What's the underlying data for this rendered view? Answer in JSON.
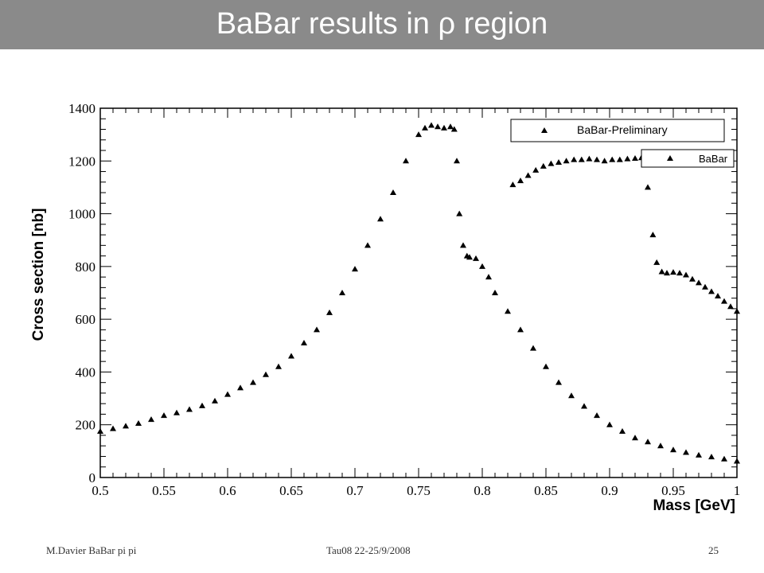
{
  "slide": {
    "title": "BaBar results in ρ region",
    "footer_author": "M.Davier   BaBar pi pi",
    "footer_event": "Tau08  22-25/9/2008",
    "footer_page": "25"
  },
  "colors": {
    "title_bar": "#8a8a8a",
    "points": "#000000"
  },
  "chart_data": {
    "type": "scatter",
    "xlabel": "Mass   [GeV]",
    "ylabel": "Cross section   [nb]",
    "xlim": [
      0.5,
      1.0
    ],
    "ylim": [
      0,
      1400
    ],
    "xticks": [
      "0.5",
      "0.55",
      "0.6",
      "0.65",
      "0.7",
      "0.75",
      "0.8",
      "0.85",
      "0.9",
      "0.95",
      "1"
    ],
    "xtick_values": [
      0.5,
      0.55,
      0.6,
      0.65,
      0.7,
      0.75,
      0.8,
      0.85,
      0.9,
      0.95,
      1.0
    ],
    "yticks": [
      "0",
      "200",
      "400",
      "600",
      "800",
      "1000",
      "1200",
      "1400"
    ],
    "ytick_values": [
      0,
      200,
      400,
      600,
      800,
      1000,
      1200,
      1400
    ],
    "grid": false,
    "legend_position": "top-right",
    "marker": "triangle",
    "series": [
      {
        "name": "BaBar-Preliminary",
        "points": [
          [
            0.5,
            175
          ],
          [
            0.51,
            185
          ],
          [
            0.52,
            195
          ],
          [
            0.53,
            205
          ],
          [
            0.54,
            220
          ],
          [
            0.55,
            235
          ],
          [
            0.56,
            245
          ],
          [
            0.57,
            258
          ],
          [
            0.58,
            272
          ],
          [
            0.59,
            290
          ],
          [
            0.6,
            315
          ],
          [
            0.61,
            340
          ],
          [
            0.62,
            360
          ],
          [
            0.63,
            390
          ],
          [
            0.64,
            420
          ],
          [
            0.65,
            460
          ],
          [
            0.66,
            510
          ],
          [
            0.67,
            560
          ],
          [
            0.68,
            625
          ],
          [
            0.69,
            700
          ],
          [
            0.7,
            790
          ],
          [
            0.71,
            880
          ],
          [
            0.72,
            980
          ],
          [
            0.73,
            1080
          ],
          [
            0.74,
            1200
          ],
          [
            0.75,
            1300
          ],
          [
            0.755,
            1325
          ],
          [
            0.76,
            1335
          ],
          [
            0.765,
            1330
          ],
          [
            0.77,
            1325
          ],
          [
            0.775,
            1330
          ],
          [
            0.778,
            1320
          ],
          [
            0.78,
            1200
          ],
          [
            0.782,
            1000
          ],
          [
            0.785,
            880
          ],
          [
            0.788,
            840
          ],
          [
            0.79,
            835
          ],
          [
            0.795,
            830
          ],
          [
            0.8,
            800
          ],
          [
            0.805,
            760
          ],
          [
            0.81,
            700
          ],
          [
            0.82,
            630
          ],
          [
            0.83,
            560
          ],
          [
            0.84,
            490
          ],
          [
            0.85,
            420
          ],
          [
            0.86,
            360
          ],
          [
            0.87,
            310
          ],
          [
            0.88,
            270
          ],
          [
            0.89,
            235
          ],
          [
            0.9,
            200
          ],
          [
            0.91,
            175
          ],
          [
            0.92,
            150
          ],
          [
            0.93,
            135
          ],
          [
            0.94,
            120
          ],
          [
            0.95,
            105
          ],
          [
            0.96,
            95
          ],
          [
            0.97,
            85
          ],
          [
            0.98,
            78
          ],
          [
            0.99,
            70
          ],
          [
            1.0,
            62
          ]
        ]
      },
      {
        "name": "BaBar",
        "points": [
          [
            0.824,
            1110
          ],
          [
            0.83,
            1125
          ],
          [
            0.836,
            1145
          ],
          [
            0.842,
            1165
          ],
          [
            0.848,
            1180
          ],
          [
            0.854,
            1190
          ],
          [
            0.86,
            1195
          ],
          [
            0.866,
            1200
          ],
          [
            0.872,
            1205
          ],
          [
            0.878,
            1205
          ],
          [
            0.884,
            1208
          ],
          [
            0.89,
            1205
          ],
          [
            0.896,
            1200
          ],
          [
            0.902,
            1205
          ],
          [
            0.908,
            1205
          ],
          [
            0.914,
            1208
          ],
          [
            0.92,
            1210
          ],
          [
            0.925,
            1212
          ],
          [
            0.93,
            1100
          ],
          [
            0.934,
            920
          ],
          [
            0.937,
            815
          ],
          [
            0.941,
            780
          ],
          [
            0.945,
            775
          ],
          [
            0.95,
            778
          ],
          [
            0.955,
            775
          ],
          [
            0.96,
            768
          ],
          [
            0.965,
            752
          ],
          [
            0.97,
            738
          ],
          [
            0.975,
            722
          ],
          [
            0.98,
            705
          ],
          [
            0.985,
            688
          ],
          [
            0.99,
            668
          ],
          [
            0.995,
            648
          ],
          [
            1.0,
            630
          ]
        ]
      }
    ]
  }
}
